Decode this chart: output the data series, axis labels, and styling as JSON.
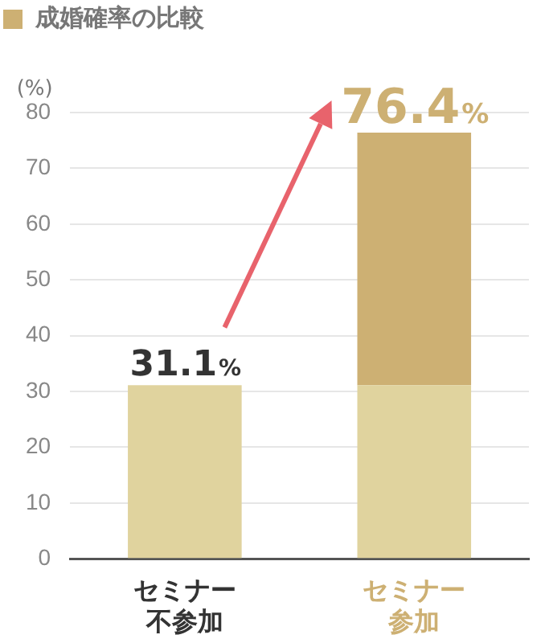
{
  "chart_data": {
    "type": "bar",
    "title": "成婚確率の比較",
    "ylabel": "(%)",
    "categories": [
      "セミナー不参加",
      "セミナー参加"
    ],
    "series": [
      {
        "color": "#e0d39e",
        "values": [
          31.1,
          31.1
        ]
      },
      {
        "color": "#cdb073",
        "values": [
          null,
          45.3
        ]
      }
    ],
    "stacked": true,
    "totals": [
      "31.1%",
      "76.4%"
    ],
    "ylim": [
      0,
      80
    ],
    "yticks": [
      0,
      10,
      20,
      30,
      40,
      50,
      60,
      70,
      80
    ],
    "grid": "y",
    "legend": false
  }
}
